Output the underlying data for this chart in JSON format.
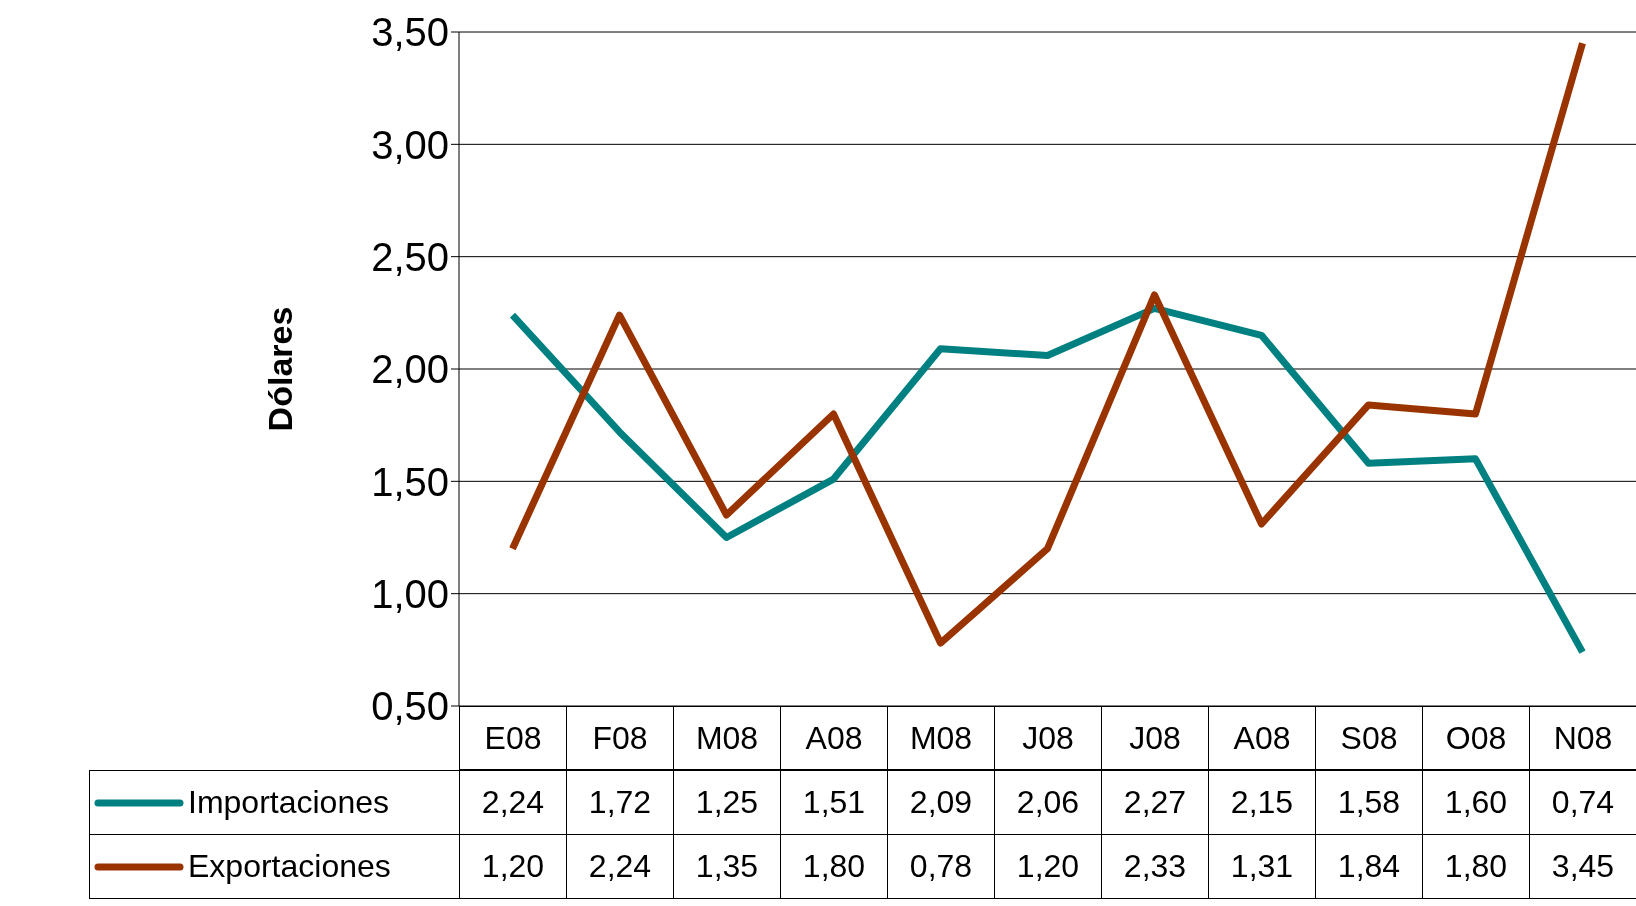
{
  "chart_data": {
    "type": "line",
    "ylabel": "Dólares",
    "categories": [
      "E08",
      "F08",
      "M08",
      "A08",
      "M08",
      "J08",
      "J08",
      "A08",
      "S08",
      "O08",
      "N08"
    ],
    "series": [
      {
        "name": "Importaciones",
        "color": "#008080",
        "values": [
          2.24,
          1.72,
          1.25,
          1.51,
          2.09,
          2.06,
          2.27,
          2.15,
          1.58,
          1.6,
          0.74
        ],
        "value_labels": [
          "2,24",
          "1,72",
          "1,25",
          "1,51",
          "2,09",
          "2,06",
          "2,27",
          "2,15",
          "1,58",
          "1,60",
          "0,74"
        ]
      },
      {
        "name": "Exportaciones",
        "color": "#993300",
        "values": [
          1.2,
          2.24,
          1.35,
          1.8,
          0.78,
          1.2,
          2.33,
          1.31,
          1.84,
          1.8,
          3.45
        ],
        "value_labels": [
          "1,20",
          "2,24",
          "1,35",
          "1,80",
          "0,78",
          "1,20",
          "2,33",
          "1,31",
          "1,84",
          "1,80",
          "3,45"
        ]
      }
    ],
    "ylim": [
      0.5,
      3.5
    ],
    "yticks": [
      {
        "value": 0.5,
        "label": "0,50"
      },
      {
        "value": 1,
        "label": "1,00"
      },
      {
        "value": 1.5,
        "label": "1,50"
      },
      {
        "value": 2,
        "label": "2,00"
      },
      {
        "value": 2.5,
        "label": "2,50"
      },
      {
        "value": 3,
        "label": "3,00"
      },
      {
        "value": 3.5,
        "label": "3,50"
      }
    ],
    "grid": "y",
    "legend": "bottom",
    "marker": "none",
    "line_style": "solid"
  }
}
